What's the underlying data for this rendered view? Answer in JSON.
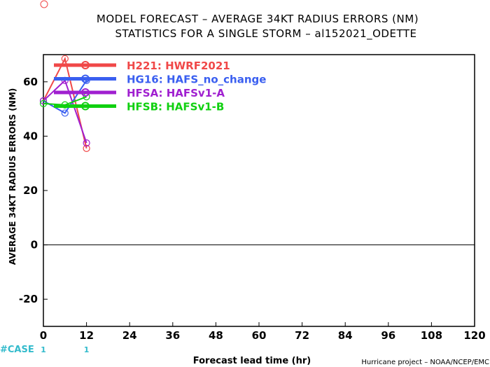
{
  "page": {
    "title_line1": "MODEL FORECAST – AVERAGE 34KT RADIUS ERRORS (NM)",
    "title_line2": "STATISTICS FOR A SINGLE STORM – al152021_ODETTE",
    "credit": "Hurricane project – NOAA/NCEP/EMC"
  },
  "chart_data": {
    "type": "line",
    "title": "MODEL FORECAST – AVERAGE 34KT RADIUS ERRORS (NM)",
    "subtitle": "STATISTICS FOR A SINGLE STORM – al152021_ODETTE",
    "xlabel": "Forecast lead time (hr)",
    "ylabel": "AVERAGE 34KT RADIUS ERRORS (NM)",
    "xlim": [
      0,
      120
    ],
    "ylim": [
      -30,
      70
    ],
    "xticks": [
      0,
      12,
      24,
      36,
      48,
      60,
      72,
      84,
      96,
      108,
      120
    ],
    "yticks": [
      -20,
      0,
      20,
      40,
      60
    ],
    "zero_line": true,
    "legend_position": "top-left",
    "case_label": "#CASE",
    "cases": [
      {
        "x": 0,
        "label": "1"
      },
      {
        "x": 12,
        "label": "1"
      }
    ],
    "series": [
      {
        "name": "H221",
        "label": "HWRF2021",
        "color": "#f04848",
        "x": [
          0,
          6,
          12
        ],
        "y": [
          53,
          68.5,
          35.5
        ]
      },
      {
        "name": "HG16",
        "label": "HAFS_no_change",
        "color": "#3a5ff0",
        "x": [
          0,
          6,
          12
        ],
        "y": [
          53,
          48.5,
          60.5
        ]
      },
      {
        "name": "HFSA",
        "label": "HAFSv1-A",
        "color": "#a020d0",
        "x": [
          0,
          6,
          12
        ],
        "y": [
          53,
          60.5,
          37.5
        ]
      },
      {
        "name": "HFSB",
        "label": "HAFSv1-B",
        "color": "#10d010",
        "x": [
          0,
          6,
          12
        ],
        "y": [
          52,
          51.5,
          54.5
        ]
      }
    ]
  }
}
